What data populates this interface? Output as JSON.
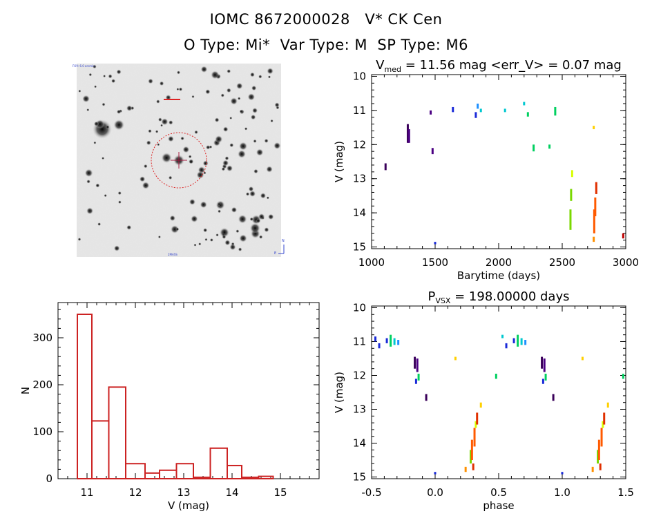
{
  "header": {
    "title": "IOMC 8672000028   V* CK Cen",
    "subtitle": "O Type: Mi*  Var Type: M  SP Type: M6"
  },
  "image_panel": {
    "corner_labels": [
      "FOV: 6.0 arcmin",
      "2MASS",
      "N",
      "E"
    ]
  },
  "colors": {
    "histogram": "#cc2222",
    "finder_circle": "#dd2222",
    "palette": [
      "#3a005a",
      "#4b0082",
      "#1a2ad8",
      "#1e90ff",
      "#00c8d0",
      "#00d060",
      "#7ad800",
      "#d8ff00",
      "#ffd000",
      "#ff9000",
      "#ff5a00",
      "#e03000",
      "#c00000"
    ]
  },
  "chart_data": [
    {
      "type": "scatter",
      "id": "lightcurve",
      "title_main": "V",
      "title_sub": "med",
      "title_rest": " = 11.56 mag <err_V> = 0.07 mag",
      "xlabel": "Barytime (days)",
      "ylabel": "V (mag)",
      "xlim": [
        1000,
        3000
      ],
      "ylim": [
        15.05,
        9.95
      ],
      "xticks": [
        1000,
        1500,
        2000,
        2500,
        3000
      ],
      "xtick_labels": [
        "1000",
        "1500",
        "2000",
        "2500",
        "3000"
      ],
      "yticks": [
        10,
        11,
        12,
        13,
        14,
        15
      ],
      "ytick_labels": [
        "10",
        "11",
        "12",
        "13",
        "14",
        "15"
      ],
      "segments": [
        {
          "x": 1110,
          "y1": 12.55,
          "y2": 12.75,
          "c": 0
        },
        {
          "x": 1285,
          "y1": 11.4,
          "y2": 11.95,
          "c": 0
        },
        {
          "x": 1295,
          "y1": 11.55,
          "y2": 11.95,
          "c": 1
        },
        {
          "x": 1465,
          "y1": 11.0,
          "y2": 11.12,
          "c": 1
        },
        {
          "x": 1480,
          "y1": 12.1,
          "y2": 12.28,
          "c": 1
        },
        {
          "x": 1500,
          "y1": 14.85,
          "y2": 14.92,
          "c": 2
        },
        {
          "x": 1640,
          "y1": 10.9,
          "y2": 11.05,
          "c": 2
        },
        {
          "x": 1820,
          "y1": 11.05,
          "y2": 11.22,
          "c": 2
        },
        {
          "x": 1835,
          "y1": 10.8,
          "y2": 10.95,
          "c": 3
        },
        {
          "x": 1860,
          "y1": 10.95,
          "y2": 11.05,
          "c": 4
        },
        {
          "x": 2050,
          "y1": 10.95,
          "y2": 11.05,
          "c": 4
        },
        {
          "x": 2200,
          "y1": 10.75,
          "y2": 10.85,
          "c": 4
        },
        {
          "x": 2230,
          "y1": 11.05,
          "y2": 11.18,
          "c": 5
        },
        {
          "x": 2275,
          "y1": 12.0,
          "y2": 12.2,
          "c": 5
        },
        {
          "x": 2400,
          "y1": 12.0,
          "y2": 12.12,
          "c": 5
        },
        {
          "x": 2445,
          "y1": 10.9,
          "y2": 11.15,
          "c": 5
        },
        {
          "x": 2565,
          "y1": 13.9,
          "y2": 14.5,
          "c": 6
        },
        {
          "x": 2570,
          "y1": 13.3,
          "y2": 13.65,
          "c": 6
        },
        {
          "x": 2578,
          "y1": 12.75,
          "y2": 12.95,
          "c": 7
        },
        {
          "x": 2748,
          "y1": 11.45,
          "y2": 11.55,
          "c": 8
        },
        {
          "x": 2748,
          "y1": 14.7,
          "y2": 14.85,
          "c": 9
        },
        {
          "x": 2752,
          "y1": 13.9,
          "y2": 14.6,
          "c": 10
        },
        {
          "x": 2760,
          "y1": 13.55,
          "y2": 14.1,
          "c": 10
        },
        {
          "x": 2768,
          "y1": 13.1,
          "y2": 13.45,
          "c": 11
        },
        {
          "x": 2980,
          "y1": 14.6,
          "y2": 14.75,
          "c": 12
        }
      ]
    },
    {
      "type": "bar",
      "id": "histogram",
      "xlabel": "V (mag)",
      "ylabel": "N",
      "xlim": [
        10.4,
        15.8
      ],
      "ylim": [
        0,
        375
      ],
      "xticks": [
        11,
        12,
        13,
        14,
        15
      ],
      "xtick_labels": [
        "11",
        "12",
        "13",
        "14",
        "15"
      ],
      "yticks": [
        0,
        100,
        200,
        300
      ],
      "ytick_labels": [
        "0",
        "100",
        "200",
        "300"
      ],
      "bin_edges": [
        10.8,
        11.1,
        11.45,
        11.8,
        12.2,
        12.5,
        12.85,
        13.2,
        13.55,
        13.9,
        14.2,
        14.55,
        14.85,
        15.15
      ],
      "values": [
        350,
        123,
        195,
        32,
        12,
        18,
        32,
        3,
        65,
        28,
        3,
        5,
        0
      ]
    },
    {
      "type": "scatter",
      "id": "phased",
      "title_main": "P",
      "title_sub": "VSX",
      "title_rest": " = 198.00000 days",
      "xlabel": "phase",
      "ylabel": "V (mag)",
      "xlim": [
        -0.5,
        1.5
      ],
      "ylim": [
        15.05,
        9.95
      ],
      "xticks": [
        -0.5,
        0.0,
        0.5,
        1.0,
        1.5
      ],
      "xtick_labels": [
        "-0.5",
        "0.0",
        "0.5",
        "1.0",
        "1.5"
      ],
      "yticks": [
        10,
        11,
        12,
        13,
        14,
        15
      ],
      "ytick_labels": [
        "10",
        "11",
        "12",
        "13",
        "14",
        "15"
      ],
      "segments": [
        {
          "x": -0.47,
          "y1": 10.85,
          "y2": 11.0,
          "c": 2
        },
        {
          "x": -0.44,
          "y1": 11.05,
          "y2": 11.2,
          "c": 2
        },
        {
          "x": -0.38,
          "y1": 10.9,
          "y2": 11.05,
          "c": 2
        },
        {
          "x": -0.35,
          "y1": 10.8,
          "y2": 11.15,
          "c": 5
        },
        {
          "x": -0.32,
          "y1": 10.9,
          "y2": 11.1,
          "c": 4
        },
        {
          "x": -0.29,
          "y1": 10.95,
          "y2": 11.1,
          "c": 3
        },
        {
          "x": -0.16,
          "y1": 11.45,
          "y2": 11.8,
          "c": 0
        },
        {
          "x": -0.14,
          "y1": 11.5,
          "y2": 11.9,
          "c": 1
        },
        {
          "x": -0.15,
          "y1": 12.1,
          "y2": 12.25,
          "c": 2
        },
        {
          "x": -0.13,
          "y1": 11.95,
          "y2": 12.15,
          "c": 5
        },
        {
          "x": -0.07,
          "y1": 12.55,
          "y2": 12.75,
          "c": 0
        },
        {
          "x": 0.0,
          "y1": 14.85,
          "y2": 14.92,
          "c": 2
        },
        {
          "x": 0.16,
          "y1": 11.45,
          "y2": 11.55,
          "c": 8
        },
        {
          "x": 0.24,
          "y1": 14.7,
          "y2": 14.85,
          "c": 9
        },
        {
          "x": 0.28,
          "y1": 14.2,
          "y2": 14.6,
          "c": 6
        },
        {
          "x": 0.29,
          "y1": 13.9,
          "y2": 14.5,
          "c": 10
        },
        {
          "x": 0.3,
          "y1": 14.6,
          "y2": 14.8,
          "c": 11
        },
        {
          "x": 0.31,
          "y1": 13.55,
          "y2": 14.1,
          "c": 10
        },
        {
          "x": 0.32,
          "y1": 13.35,
          "y2": 13.55,
          "c": 7
        },
        {
          "x": 0.33,
          "y1": 13.1,
          "y2": 13.45,
          "c": 11
        },
        {
          "x": 0.36,
          "y1": 12.8,
          "y2": 12.95,
          "c": 8
        },
        {
          "x": 0.48,
          "y1": 11.95,
          "y2": 12.1,
          "c": 5
        },
        {
          "x": 0.53,
          "y1": 10.8,
          "y2": 10.9,
          "c": 4
        },
        {
          "x": 0.56,
          "y1": 11.05,
          "y2": 11.2,
          "c": 2
        },
        {
          "x": 0.62,
          "y1": 10.9,
          "y2": 11.05,
          "c": 2
        },
        {
          "x": 0.65,
          "y1": 10.8,
          "y2": 11.15,
          "c": 5
        },
        {
          "x": 0.68,
          "y1": 10.9,
          "y2": 11.1,
          "c": 4
        },
        {
          "x": 0.71,
          "y1": 10.95,
          "y2": 11.1,
          "c": 3
        },
        {
          "x": 0.84,
          "y1": 11.45,
          "y2": 11.8,
          "c": 0
        },
        {
          "x": 0.86,
          "y1": 11.5,
          "y2": 11.9,
          "c": 1
        },
        {
          "x": 0.85,
          "y1": 12.1,
          "y2": 12.25,
          "c": 2
        },
        {
          "x": 0.87,
          "y1": 11.95,
          "y2": 12.15,
          "c": 5
        },
        {
          "x": 0.93,
          "y1": 12.55,
          "y2": 12.75,
          "c": 0
        },
        {
          "x": 1.0,
          "y1": 14.85,
          "y2": 14.92,
          "c": 2
        },
        {
          "x": 1.16,
          "y1": 11.45,
          "y2": 11.55,
          "c": 8
        },
        {
          "x": 1.24,
          "y1": 14.7,
          "y2": 14.85,
          "c": 9
        },
        {
          "x": 1.28,
          "y1": 14.2,
          "y2": 14.6,
          "c": 6
        },
        {
          "x": 1.29,
          "y1": 13.9,
          "y2": 14.5,
          "c": 10
        },
        {
          "x": 1.3,
          "y1": 14.6,
          "y2": 14.8,
          "c": 11
        },
        {
          "x": 1.31,
          "y1": 13.55,
          "y2": 14.1,
          "c": 10
        },
        {
          "x": 1.32,
          "y1": 13.35,
          "y2": 13.55,
          "c": 7
        },
        {
          "x": 1.33,
          "y1": 13.1,
          "y2": 13.45,
          "c": 11
        },
        {
          "x": 1.36,
          "y1": 12.8,
          "y2": 12.95,
          "c": 8
        },
        {
          "x": 1.48,
          "y1": 11.95,
          "y2": 12.1,
          "c": 5
        }
      ]
    }
  ]
}
